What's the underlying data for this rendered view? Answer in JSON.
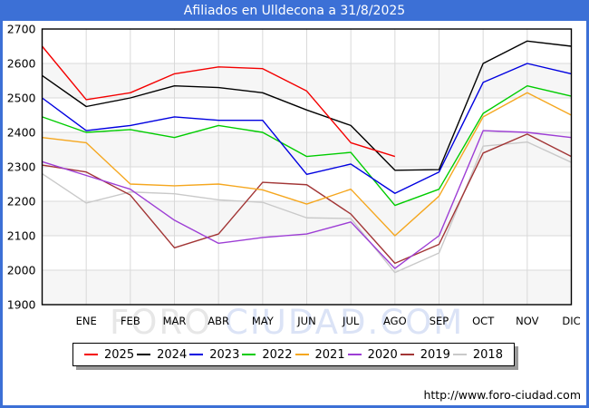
{
  "title": "Afiliados en Ulldecona a 31/8/2025",
  "watermark": {
    "part1": "FORO",
    "part2": "CIUDAD.COM"
  },
  "footer": {
    "url": "http://www.foro-ciudad.com"
  },
  "colors": {
    "titlebar": "#3c70d6",
    "frame_border": "#3c70d6",
    "plot_band": "#f6f6f6",
    "gridline": "#d9d9d9",
    "axis_frame": "#000000"
  },
  "chart_data": {
    "type": "line",
    "title": "Afiliados en Ulldecona a 31/8/2025",
    "xlabel": "",
    "ylabel": "",
    "x_axis": {
      "months": [
        "ENE",
        "FEB",
        "MAR",
        "ABR",
        "MAY",
        "JUN",
        "JUL",
        "AGO",
        "SEP",
        "OCT",
        "NOV",
        "DIC"
      ],
      "first_point_note": "each series has an extra starting point at the left axis (previous December)"
    },
    "y_axis": {
      "min": 1900,
      "max": 2700,
      "ticks": [
        2700,
        2600,
        2500,
        2400,
        2300,
        2200,
        2100,
        2000,
        1900
      ]
    },
    "grid": true,
    "legend_position": "bottom",
    "series": [
      {
        "name": "2025",
        "color": "#f40000",
        "values": [
          2650,
          2495,
          2515,
          2570,
          2590,
          2585,
          2520,
          2370,
          2330
        ]
      },
      {
        "name": "2024",
        "color": "#000000",
        "values": [
          2565,
          2475,
          2500,
          2535,
          2530,
          2515,
          2465,
          2420,
          2290,
          2292,
          2600,
          2665,
          2650
        ]
      },
      {
        "name": "2023",
        "color": "#0000e0",
        "values": [
          2500,
          2405,
          2420,
          2445,
          2435,
          2435,
          2278,
          2308,
          2223,
          2285,
          2545,
          2600,
          2570
        ]
      },
      {
        "name": "2022",
        "color": "#00cc00",
        "values": [
          2445,
          2400,
          2408,
          2385,
          2420,
          2400,
          2330,
          2342,
          2188,
          2235,
          2455,
          2535,
          2505
        ]
      },
      {
        "name": "2021",
        "color": "#f5a71f",
        "values": [
          2385,
          2370,
          2250,
          2245,
          2250,
          2233,
          2192,
          2235,
          2100,
          2215,
          2445,
          2515,
          2450
        ]
      },
      {
        "name": "2020",
        "color": "#9d3ed5",
        "values": [
          2315,
          2275,
          2235,
          2145,
          2078,
          2095,
          2105,
          2140,
          2005,
          2100,
          2405,
          2400,
          2385
        ]
      },
      {
        "name": "2019",
        "color": "#a23535",
        "values": [
          2305,
          2285,
          2218,
          2065,
          2105,
          2255,
          2248,
          2163,
          2020,
          2075,
          2340,
          2395,
          2330
        ]
      },
      {
        "name": "2018",
        "color": "#c9c9c9",
        "values": [
          2280,
          2195,
          2227,
          2222,
          2204,
          2197,
          2152,
          2150,
          1993,
          2050,
          2360,
          2372,
          2313
        ]
      }
    ]
  }
}
